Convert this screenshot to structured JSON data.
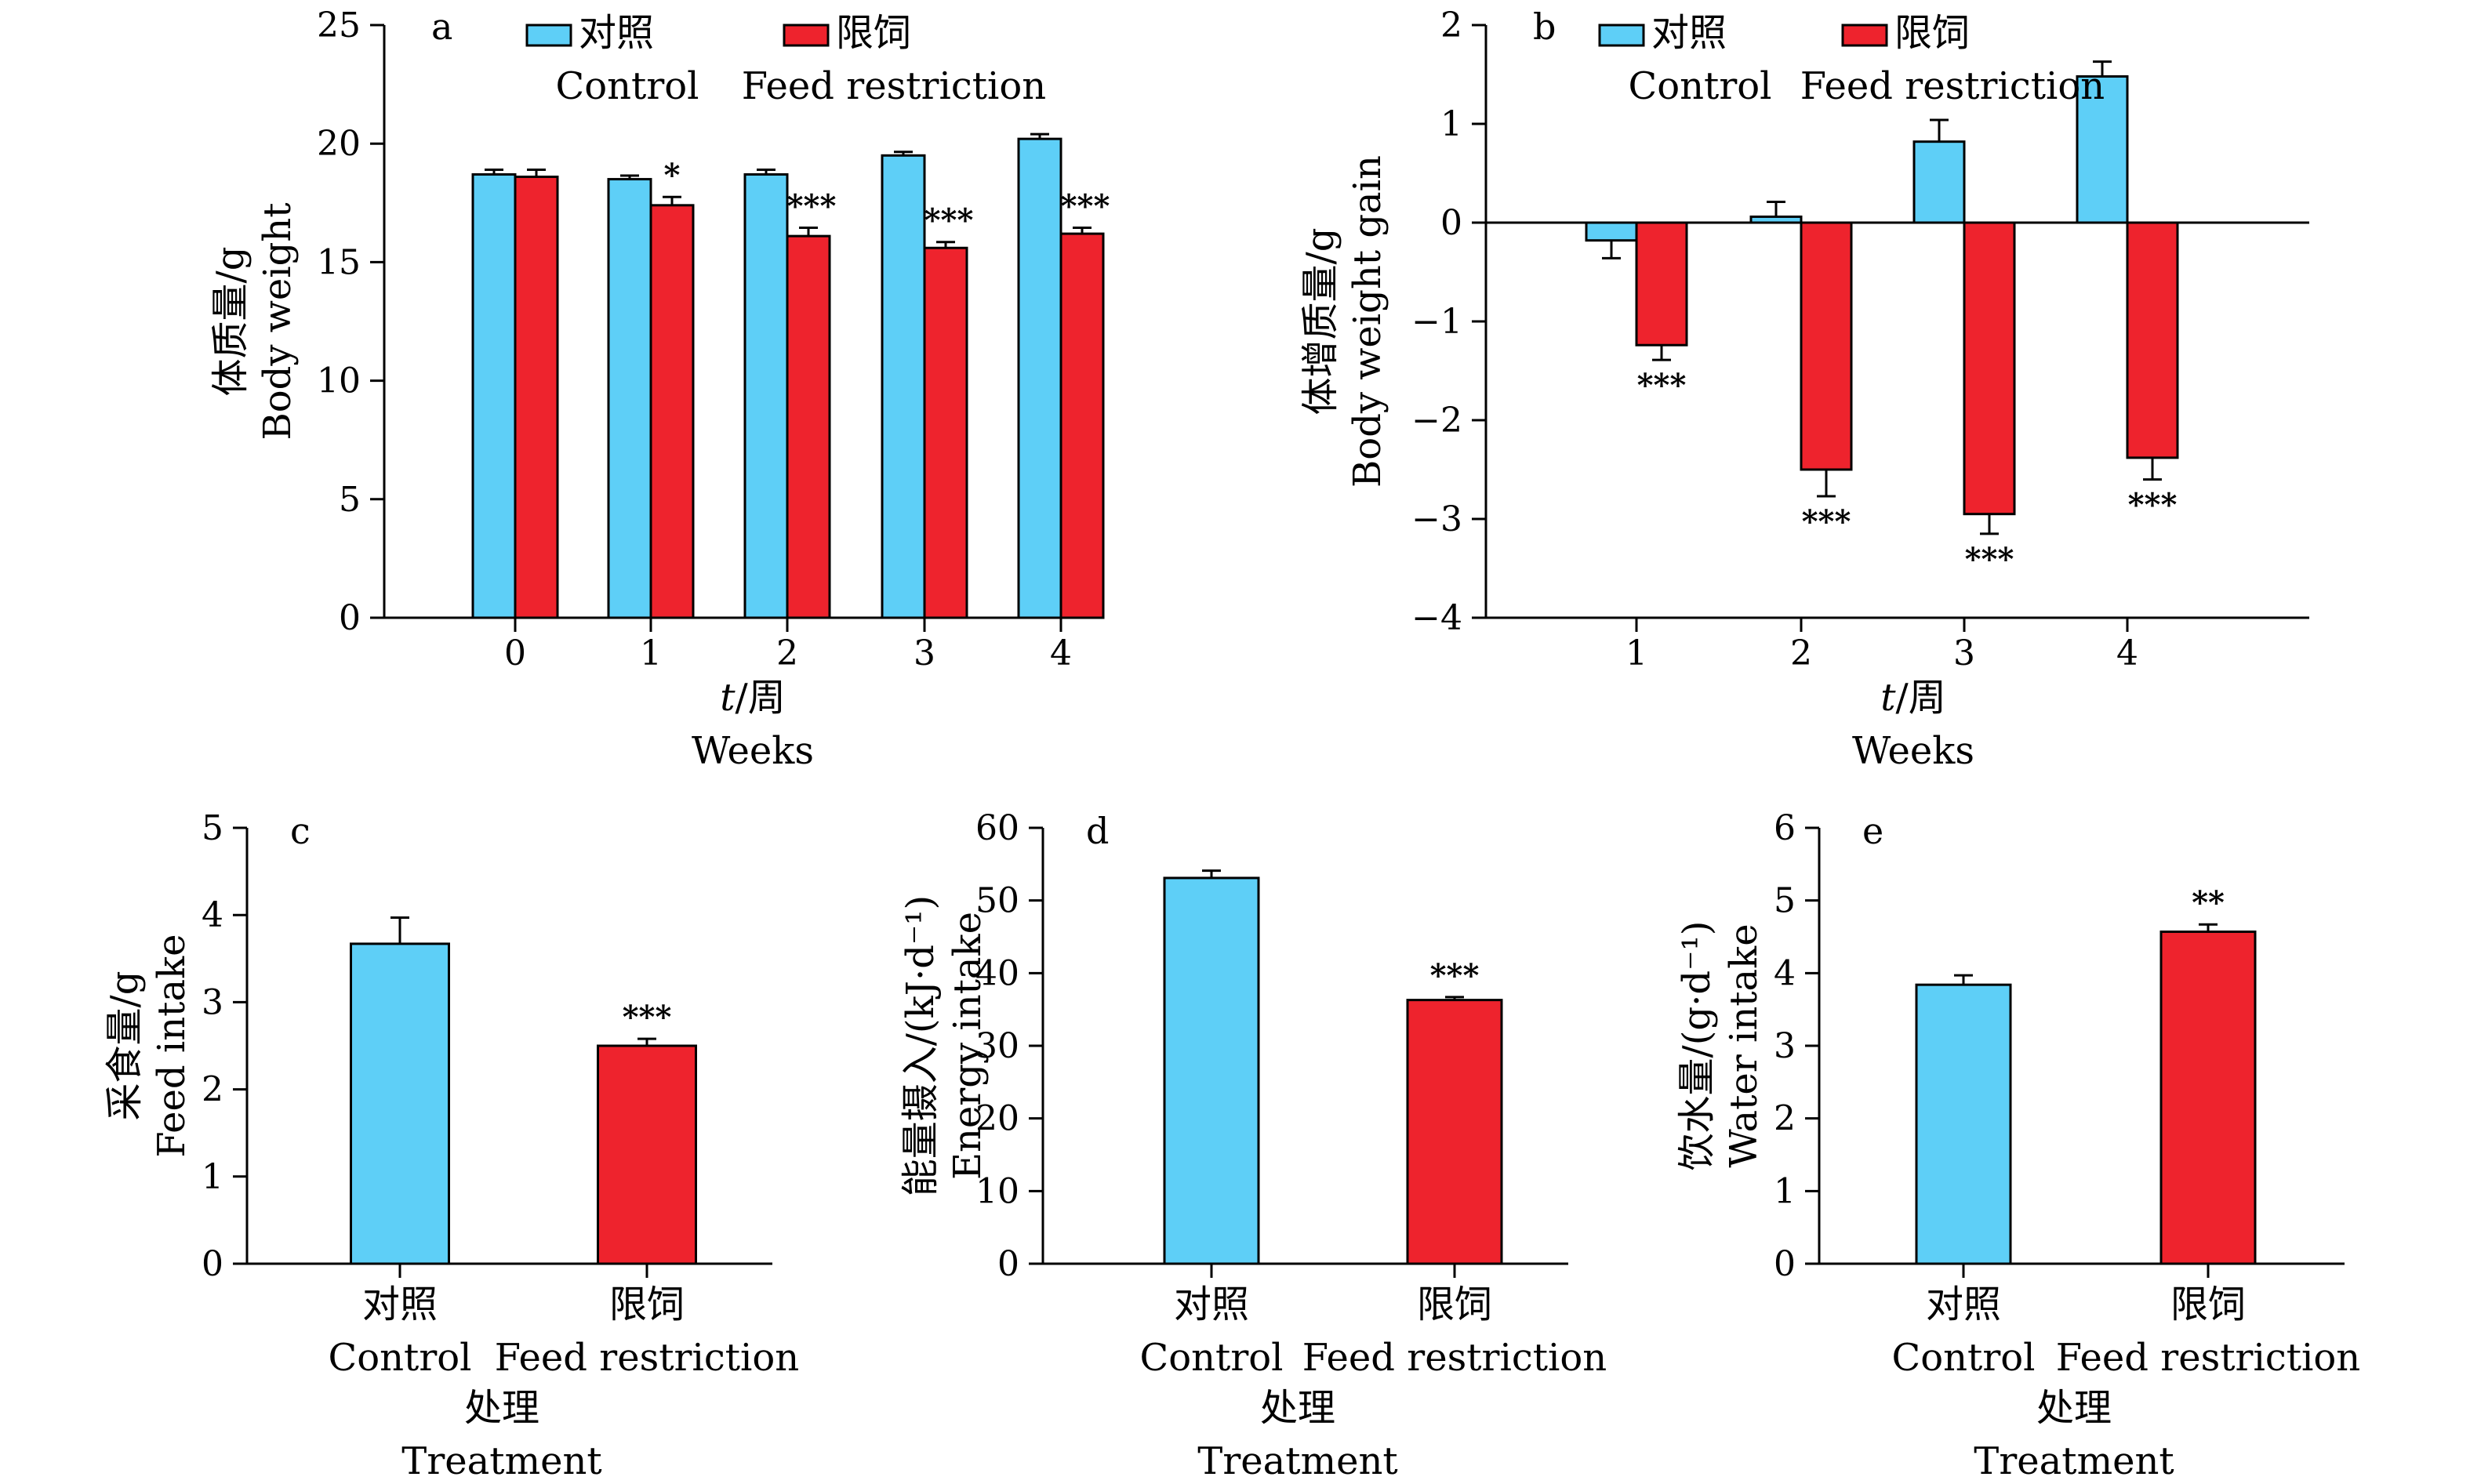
{
  "colors": {
    "control": "#5ecff7",
    "restriction": "#ee232d",
    "axis": "#000000"
  },
  "legend": {
    "control_cn": "对照",
    "control_en": "Control",
    "restriction_cn": "限饲",
    "restriction_en": "Feed restriction"
  },
  "chart_data": [
    {
      "id": "a",
      "type": "bar",
      "letter": "a",
      "ylabel_cn": "体质量/g",
      "ylabel_en": "Body weight",
      "xlabel_cn": "t/周",
      "xlabel_italic": "t",
      "xlabel_rest": "/周",
      "xlabel_en": "Weeks",
      "ylim": [
        0,
        25
      ],
      "yticks": [
        0,
        5,
        10,
        15,
        20,
        25
      ],
      "categories": [
        "0",
        "1",
        "2",
        "3",
        "4"
      ],
      "series": [
        {
          "name": "Control",
          "values": [
            18.7,
            18.5,
            18.7,
            19.5,
            20.2
          ],
          "errors": [
            0.2,
            0.15,
            0.2,
            0.15,
            0.2
          ]
        },
        {
          "name": "Feed restriction",
          "values": [
            18.6,
            17.4,
            16.1,
            15.6,
            16.2
          ],
          "errors": [
            0.3,
            0.35,
            0.35,
            0.25,
            0.25
          ]
        }
      ],
      "significance": [
        "",
        "*",
        "***",
        "***",
        "***"
      ]
    },
    {
      "id": "b",
      "type": "bar",
      "letter": "b",
      "ylabel_cn": "体增质量/g",
      "ylabel_en": "Body weight gain",
      "xlabel_cn": "t/周",
      "xlabel_italic": "t",
      "xlabel_rest": "/周",
      "xlabel_en": "Weeks",
      "ylim": [
        -4,
        2
      ],
      "yticks": [
        -4,
        -3,
        -2,
        -1,
        0,
        1,
        2
      ],
      "categories": [
        "1",
        "2",
        "3",
        "4"
      ],
      "series": [
        {
          "name": "Control",
          "values": [
            -0.18,
            0.06,
            0.82,
            1.48
          ],
          "errors": [
            0.18,
            0.15,
            0.22,
            0.15
          ]
        },
        {
          "name": "Feed restriction",
          "values": [
            -1.24,
            -2.5,
            -2.95,
            -2.38
          ],
          "errors": [
            0.15,
            0.27,
            0.2,
            0.22
          ]
        }
      ],
      "significance": [
        "***",
        "***",
        "***",
        "***"
      ]
    },
    {
      "id": "c",
      "type": "bar",
      "letter": "c",
      "ylabel_cn": "采食量/g",
      "ylabel_en": "Feed intake",
      "xlabel_cn": "处理",
      "xlabel_en": "Treatment",
      "ylim": [
        0,
        5
      ],
      "yticks": [
        0,
        1,
        2,
        3,
        4,
        5
      ],
      "categories": [
        {
          "cn": "对照",
          "en": "Control"
        },
        {
          "cn": "限饲",
          "en": "Feed restriction"
        }
      ],
      "values": [
        3.67,
        2.5
      ],
      "errors": [
        0.3,
        0.08
      ],
      "significance": [
        "",
        "***"
      ]
    },
    {
      "id": "d",
      "type": "bar",
      "letter": "d",
      "ylabel_cn": "能量摄入/(kJ·d⁻¹)",
      "ylabel_en": "Energy intake",
      "xlabel_cn": "处理",
      "xlabel_en": "Treatment",
      "ylim": [
        0,
        60
      ],
      "yticks": [
        0,
        10,
        20,
        30,
        40,
        50,
        60
      ],
      "categories": [
        {
          "cn": "对照",
          "en": "Control"
        },
        {
          "cn": "限饲",
          "en": "Feed restriction"
        }
      ],
      "values": [
        53.1,
        36.3
      ],
      "errors": [
        1.0,
        0.4
      ],
      "significance": [
        "",
        "***"
      ]
    },
    {
      "id": "e",
      "type": "bar",
      "letter": "e",
      "ylabel_cn": "饮水量/(g·d⁻¹)",
      "ylabel_en": "Water intake",
      "xlabel_cn": "处理",
      "xlabel_en": "Treatment",
      "ylim": [
        0,
        6
      ],
      "yticks": [
        0,
        1,
        2,
        3,
        4,
        5,
        6
      ],
      "categories": [
        {
          "cn": "对照",
          "en": "Control"
        },
        {
          "cn": "限饲",
          "en": "Feed restriction"
        }
      ],
      "values": [
        3.84,
        4.57
      ],
      "errors": [
        0.13,
        0.1
      ],
      "significance": [
        "",
        "**"
      ]
    }
  ]
}
